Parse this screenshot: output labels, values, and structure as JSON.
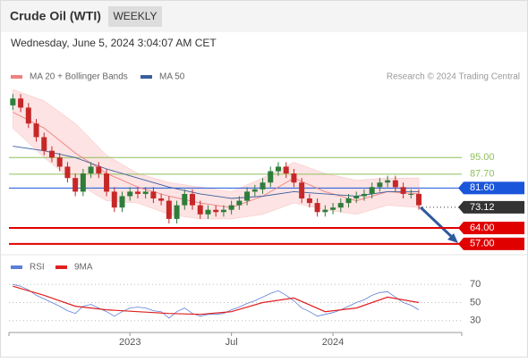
{
  "chart_data": {
    "type": "candlestick",
    "title": "Crude Oil (WTI)",
    "timeframe": "WEEKLY",
    "subtitle": "Wednesday, June 5, 2024 3:04:07 AM CET",
    "credit": "Research © 2024 Trading Central",
    "x": [
      0,
      2,
      4,
      6,
      8,
      10,
      12,
      14,
      16,
      18,
      20,
      22,
      24,
      26,
      28,
      30,
      32,
      34,
      36,
      38,
      40,
      42,
      44,
      46,
      48,
      50,
      52,
      54,
      56,
      58,
      60,
      62,
      64,
      66,
      68,
      70,
      72,
      74,
      76,
      78,
      80,
      82,
      84,
      86,
      88,
      90,
      92,
      94,
      96,
      98,
      100,
      102,
      104
    ],
    "open": [
      118,
      121,
      117,
      110,
      104,
      98,
      95,
      91,
      86,
      80,
      88,
      91,
      88,
      80,
      73,
      78,
      80,
      79,
      80,
      77,
      76,
      68,
      74,
      79,
      74,
      70,
      72,
      71,
      72,
      74,
      76,
      80,
      81,
      84,
      89,
      91,
      88,
      84,
      77,
      75,
      71,
      72,
      73,
      75,
      77,
      78,
      79,
      82,
      84,
      85,
      82,
      79,
      79
    ],
    "high": [
      123,
      123,
      119,
      112,
      106,
      100,
      97,
      93,
      88,
      90,
      93,
      93,
      90,
      82,
      80,
      82,
      82,
      82,
      82,
      79,
      78,
      76,
      81,
      81,
      76,
      74,
      74,
      74,
      76,
      78,
      82,
      83,
      86,
      91,
      93,
      93,
      90,
      86,
      79,
      77,
      74,
      75,
      77,
      79,
      80,
      81,
      84,
      86,
      87,
      87,
      84,
      81,
      81
    ],
    "low": [
      116,
      115,
      108,
      102,
      96,
      93,
      89,
      84,
      78,
      78,
      86,
      86,
      78,
      71,
      71,
      76,
      77,
      77,
      75,
      74,
      66,
      66,
      72,
      72,
      68,
      68,
      69,
      69,
      70,
      72,
      74,
      78,
      79,
      82,
      87,
      86,
      82,
      75,
      73,
      69,
      69,
      70,
      71,
      73,
      75,
      76,
      77,
      80,
      82,
      80,
      77,
      77,
      72
    ],
    "close": [
      121,
      117,
      110,
      104,
      98,
      95,
      91,
      86,
      80,
      88,
      91,
      88,
      80,
      73,
      78,
      80,
      79,
      80,
      77,
      76,
      68,
      74,
      79,
      74,
      70,
      72,
      71,
      72,
      74,
      76,
      80,
      81,
      84,
      89,
      91,
      88,
      84,
      77,
      75,
      71,
      72,
      73,
      75,
      77,
      78,
      79,
      82,
      84,
      85,
      82,
      79,
      79,
      74
    ],
    "up_color": "#2f7d3b",
    "down_color": "#c62828",
    "xlim": [
      -1,
      115
    ],
    "xticks": [
      {
        "value": 30,
        "label": "2023"
      },
      {
        "value": 56,
        "label": "Jul"
      },
      {
        "value": 82,
        "label": "2024"
      }
    ],
    "ylim": [
      53,
      127
    ],
    "series": [
      {
        "name": "MA 20 + Bollinger Bands",
        "color": "#f08080",
        "band_color": "#fde3e3",
        "x": [
          0,
          8,
          16,
          24,
          32,
          40,
          48,
          56,
          64,
          72,
          80,
          88,
          96,
          104
        ],
        "values": [
          115,
          108,
          97,
          88,
          82,
          78,
          75,
          73,
          78,
          86,
          80,
          76,
          80,
          79
        ],
        "upper": [
          125,
          120,
          110,
          96,
          88,
          84,
          82,
          80,
          86,
          93,
          88,
          85,
          86,
          86
        ],
        "lower": [
          108,
          95,
          84,
          76,
          75,
          70,
          68,
          68,
          70,
          75,
          72,
          70,
          74,
          73
        ]
      },
      {
        "name": "MA 50",
        "color": "#3a5fa0",
        "x": [
          0,
          8,
          16,
          24,
          32,
          40,
          48,
          56,
          64,
          72,
          80,
          88,
          96,
          104
        ],
        "values": [
          100,
          98,
          95,
          90,
          86,
          82,
          79,
          77,
          78,
          80,
          79,
          78,
          80,
          80
        ]
      }
    ],
    "levels": [
      {
        "value": 95,
        "label": "95.00",
        "color": "#8fbf5a",
        "style": "plain"
      },
      {
        "value": 87.7,
        "label": "87.70",
        "color": "#8fbf5a",
        "style": "plain"
      },
      {
        "value": 81.6,
        "label": "81.60",
        "color": "#1a56db",
        "style": "box"
      },
      {
        "value": 73.12,
        "label": "73.12",
        "color": "#333333",
        "style": "dotted"
      },
      {
        "value": 64,
        "label": "64.00",
        "color": "#e00000",
        "style": "box"
      },
      {
        "value": 57,
        "label": "57.00",
        "color": "#e00000",
        "style": "box"
      }
    ],
    "rsi": {
      "type": "line",
      "ylim": [
        17,
        83
      ],
      "yticks": [
        70,
        50,
        30
      ],
      "series": [
        {
          "name": "RSI",
          "color": "#5b7fd6",
          "x": [
            0,
            2,
            4,
            6,
            8,
            10,
            12,
            14,
            16,
            18,
            20,
            22,
            24,
            26,
            28,
            30,
            32,
            34,
            36,
            38,
            40,
            42,
            44,
            46,
            48,
            50,
            52,
            54,
            56,
            58,
            60,
            62,
            64,
            66,
            68,
            70,
            72,
            74,
            76,
            78,
            80,
            82,
            84,
            86,
            88,
            90,
            92,
            94,
            96,
            98,
            100,
            102,
            104
          ],
          "values": [
            70,
            68,
            64,
            58,
            54,
            50,
            46,
            41,
            38,
            46,
            48,
            44,
            40,
            35,
            40,
            44,
            45,
            44,
            41,
            40,
            33,
            40,
            44,
            38,
            35,
            37,
            37,
            38,
            42,
            45,
            49,
            52,
            56,
            60,
            63,
            58,
            52,
            44,
            40,
            35,
            37,
            39,
            42,
            46,
            50,
            53,
            58,
            61,
            62,
            56,
            50,
            47,
            42
          ]
        },
        {
          "name": "9MA",
          "color": "#e02020",
          "x": [
            0,
            8,
            16,
            24,
            32,
            40,
            48,
            56,
            64,
            72,
            80,
            88,
            96,
            104
          ],
          "values": [
            68,
            58,
            46,
            42,
            40,
            38,
            37,
            40,
            50,
            55,
            40,
            44,
            56,
            50
          ]
        }
      ]
    }
  }
}
